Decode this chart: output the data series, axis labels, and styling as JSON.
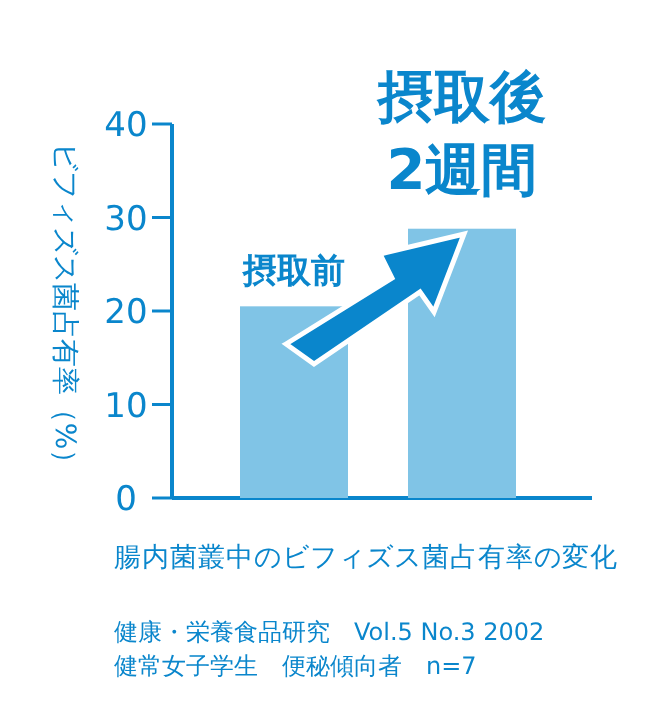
{
  "chart_data": {
    "type": "bar",
    "categories": [
      "摂取前",
      "摂取後\n2週間"
    ],
    "values": [
      20.5,
      28.8
    ],
    "color": "#80c4e6",
    "ylabel": "ビフィズス菌占有率（%）",
    "ylim": [
      0,
      40
    ],
    "yticks": [
      0,
      10,
      20,
      30,
      40
    ],
    "annotations": [
      "腸内菌叢中のビフィズス菌占有率の変化",
      "健康・栄養食品研究　Vol.5 No.3 2002",
      "健常女子学生　便秘傾向者　n=7"
    ]
  }
}
